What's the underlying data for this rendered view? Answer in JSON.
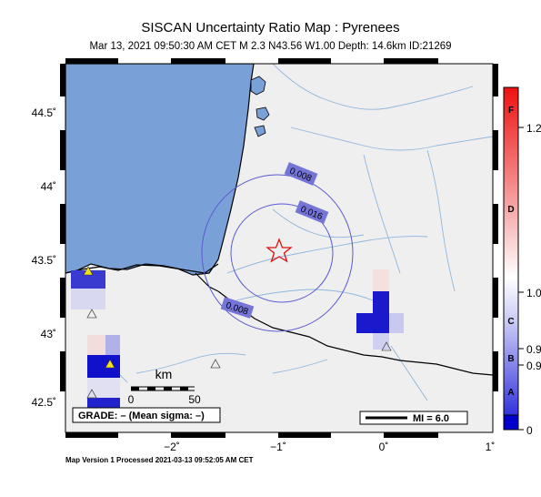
{
  "title": "SISCAN Uncertainty Ratio Map : Pyrenees",
  "subtitle": "Mar 13, 2021 09:50:30 AM CET   M 2.3   N43.56 W1.00   Depth: 14.6km   ID:21269",
  "map": {
    "lat_ticks": [
      "44.5˚",
      "44˚",
      "43.5˚",
      "43˚",
      "42.5˚"
    ],
    "lon_ticks": [
      "−2˚",
      "−1˚",
      "0˚",
      "1˚"
    ],
    "contour_labels": [
      "0.008",
      "0.016",
      "0.008"
    ],
    "epicenter_symbol": "red-star"
  },
  "scalebar": {
    "unit": "km",
    "ticks": [
      "0",
      "50"
    ]
  },
  "grade_box": "GRADE: – (Mean sigma: –)",
  "mi_legend": "MI = 6.0",
  "colorbar": {
    "values": [
      "1.2",
      "1.0",
      "0.9",
      "0.9",
      "0"
    ],
    "grades": [
      "F",
      "D",
      "C",
      "B",
      "A"
    ],
    "top_color": "#ff0000",
    "bottom_color": "#0000cc"
  },
  "footer": "Map Version 1 Processed 2021-03-13 09:52:05 AM CET"
}
